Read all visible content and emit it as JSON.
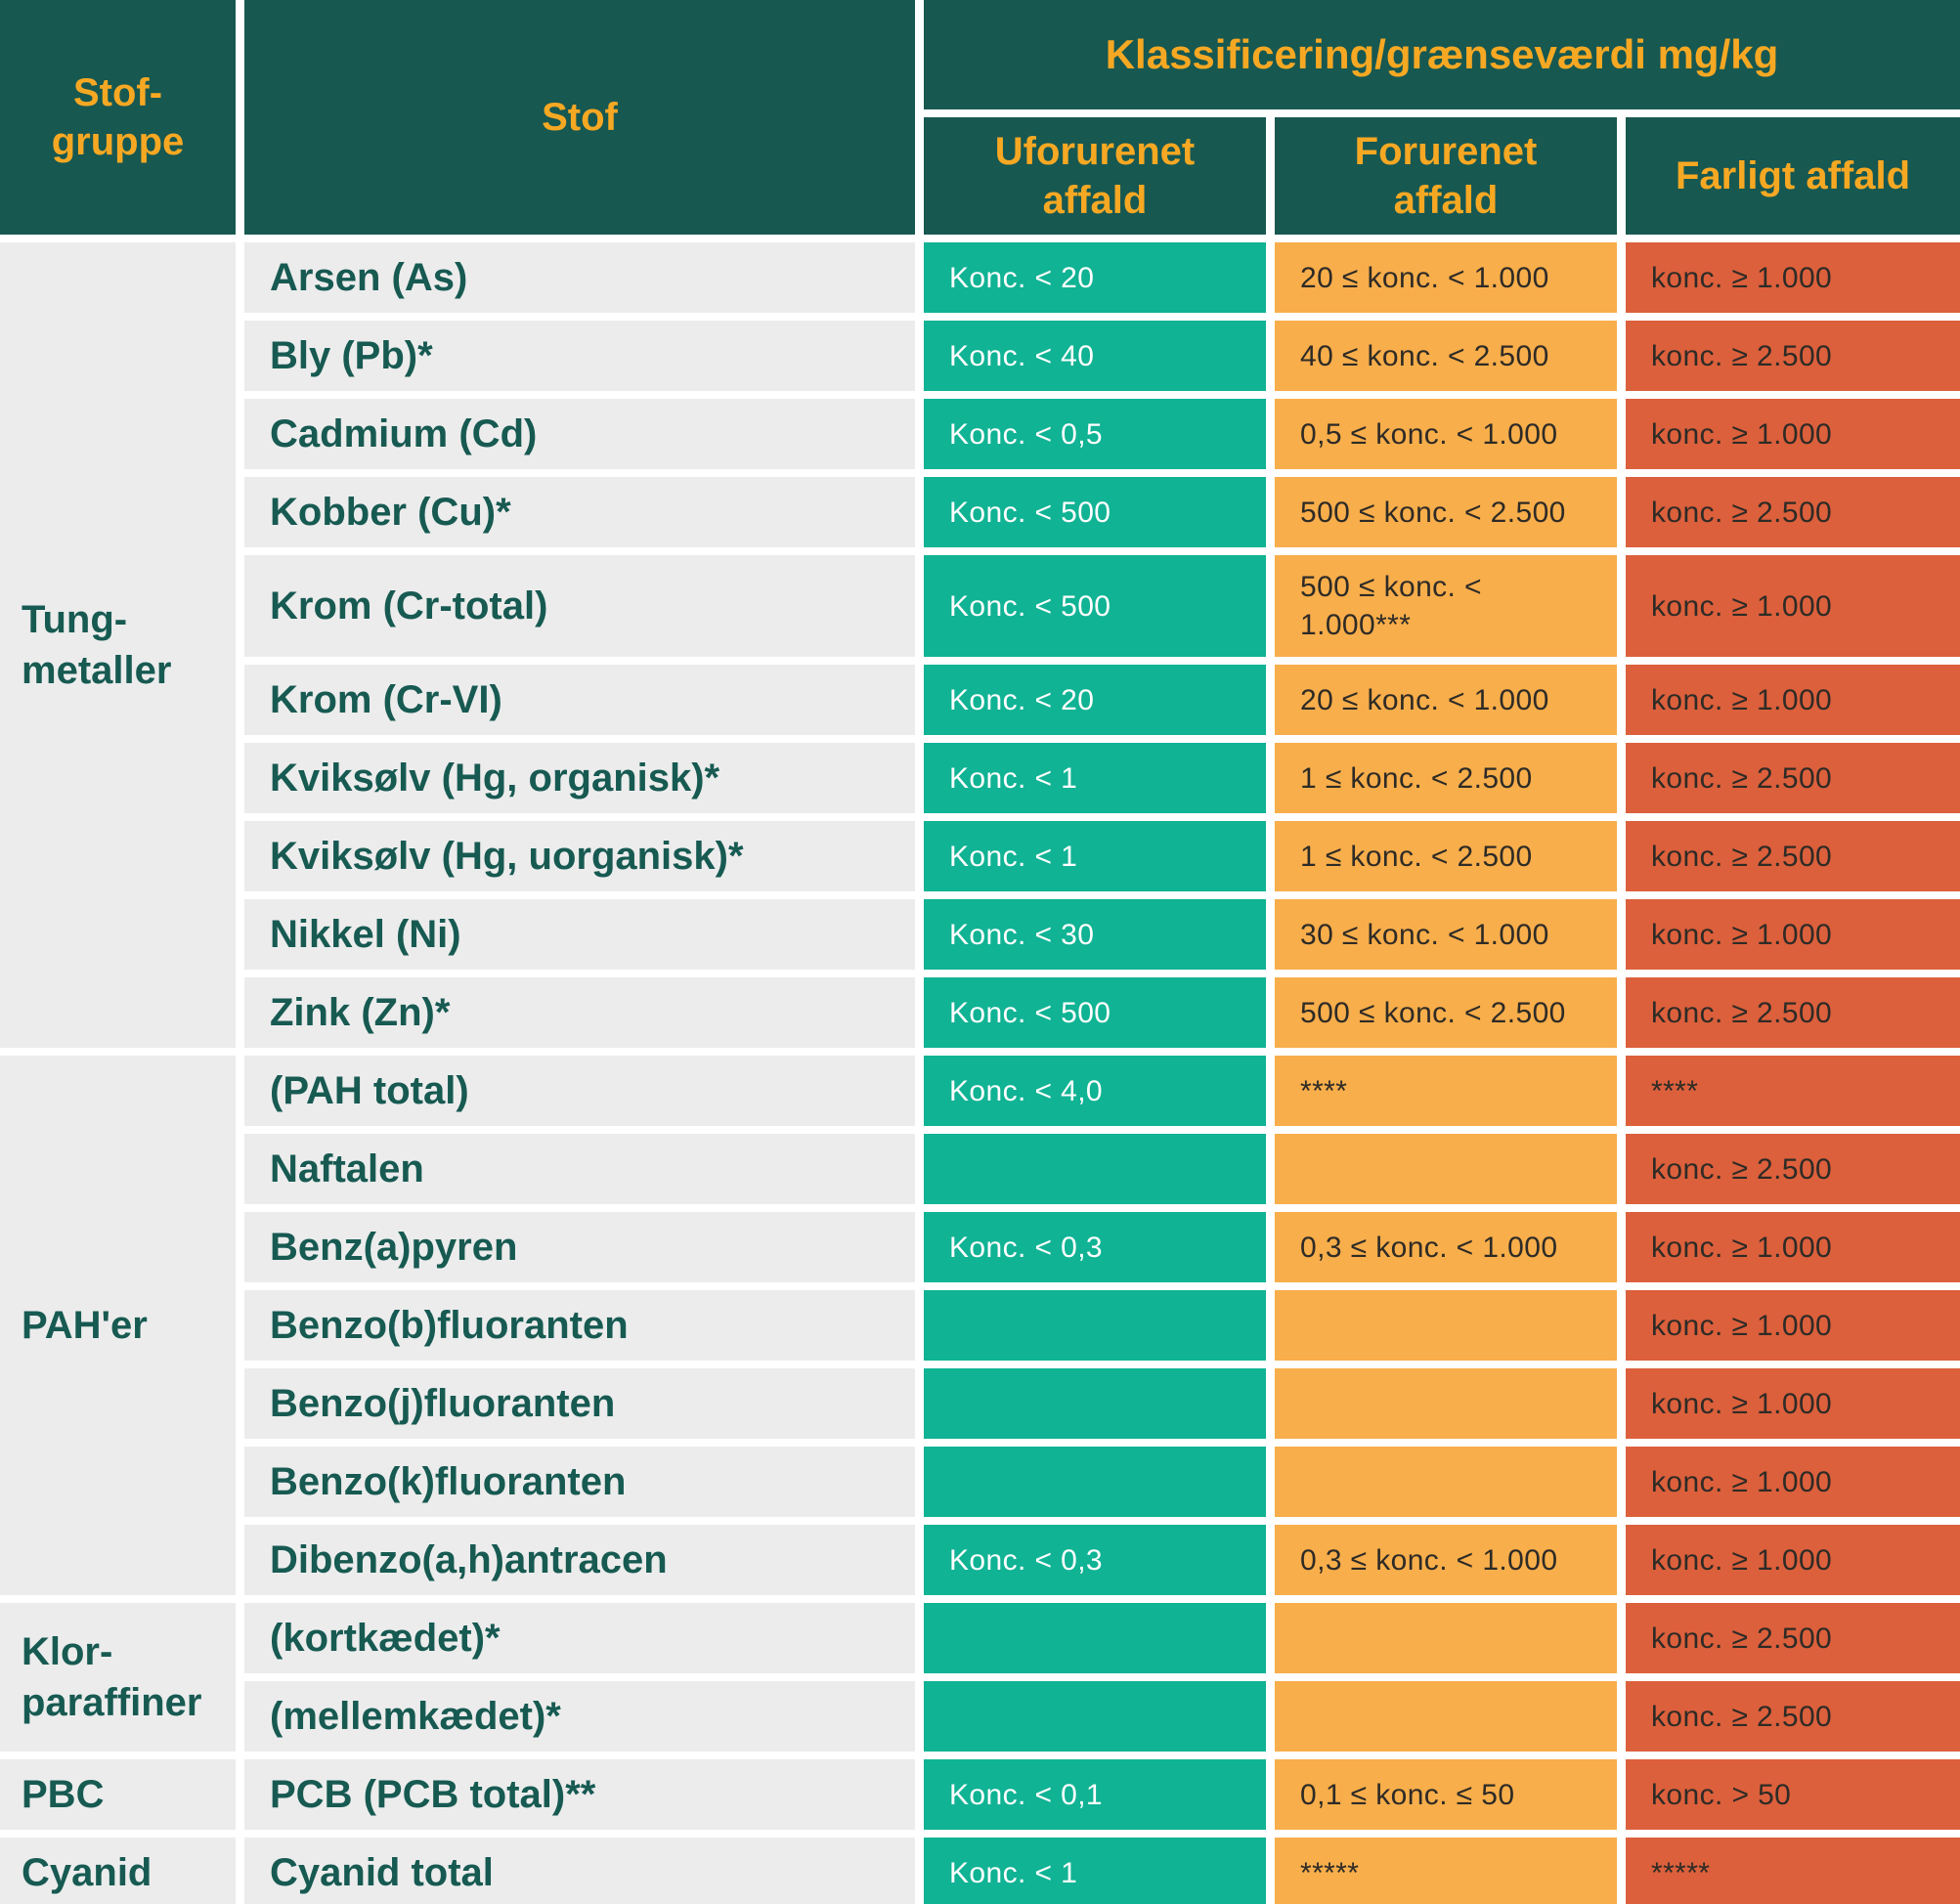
{
  "table": {
    "header": {
      "col1": "Stof-\ngruppe",
      "col2": "Stof",
      "classification": "Klassificering/grænseværdi mg/kg",
      "sub": [
        "Uforurenet\naffald",
        "Forurenet\naffald",
        "Farligt affald"
      ]
    },
    "groups": [
      {
        "label": "Tung-\nmetaller",
        "rows": 10
      },
      {
        "label": "PAH'er",
        "rows": 7
      },
      {
        "label": "Klor-\nparaffiner",
        "rows": 2
      },
      {
        "label": "PBC",
        "rows": 1
      },
      {
        "label": "Cyanid",
        "rows": 1
      }
    ],
    "rows": [
      {
        "stof": "Arsen (As)",
        "uforurenet": "Konc. < 20",
        "forurenet": "20 ≤ konc. < 1.000",
        "farligt": "konc. ≥ 1.000"
      },
      {
        "stof": "Bly (Pb)*",
        "uforurenet": "Konc. < 40",
        "forurenet": "40 ≤ konc. < 2.500",
        "farligt": "konc. ≥ 2.500"
      },
      {
        "stof": "Cadmium (Cd)",
        "uforurenet": "Konc. < 0,5",
        "forurenet": "0,5 ≤ konc. < 1.000",
        "farligt": "konc. ≥ 1.000"
      },
      {
        "stof": "Kobber (Cu)*",
        "uforurenet": "Konc. < 500",
        "forurenet": "500 ≤ konc. < 2.500",
        "farligt": "konc. ≥ 2.500"
      },
      {
        "stof": "Krom (Cr-total)",
        "uforurenet": "Konc. < 500",
        "forurenet": "500 ≤ konc. <\n1.000***",
        "farligt": "konc. ≥ 1.000"
      },
      {
        "stof": "Krom (Cr-VI)",
        "uforurenet": "Konc. < 20",
        "forurenet": "20 ≤ konc. < 1.000",
        "farligt": "konc. ≥ 1.000"
      },
      {
        "stof": "Kviksølv (Hg, organisk)*",
        "uforurenet": "Konc. < 1",
        "forurenet": "1 ≤ konc. < 2.500",
        "farligt": "konc. ≥ 2.500"
      },
      {
        "stof": "Kviksølv (Hg, uorganisk)*",
        "uforurenet": "Konc. < 1",
        "forurenet": "1 ≤ konc. < 2.500",
        "farligt": "konc. ≥ 2.500"
      },
      {
        "stof": "Nikkel (Ni)",
        "uforurenet": "Konc. < 30",
        "forurenet": "30 ≤ konc. < 1.000",
        "farligt": "konc. ≥ 1.000"
      },
      {
        "stof": "Zink (Zn)*",
        "uforurenet": "Konc. < 500",
        "forurenet": "500 ≤ konc. < 2.500",
        "farligt": "konc. ≥ 2.500"
      },
      {
        "stof": "(PAH total)",
        "uforurenet": "Konc. < 4,0",
        "forurenet": "****",
        "farligt": "****"
      },
      {
        "stof": "Naftalen",
        "uforurenet": "",
        "forurenet": "",
        "farligt": "konc. ≥ 2.500"
      },
      {
        "stof": "Benz(a)pyren",
        "uforurenet": "Konc. < 0,3",
        "forurenet": "0,3 ≤ konc. < 1.000",
        "farligt": "konc. ≥ 1.000"
      },
      {
        "stof": "Benzo(b)fluoranten",
        "uforurenet": "",
        "forurenet": "",
        "farligt": "konc. ≥ 1.000"
      },
      {
        "stof": "Benzo(j)fluoranten",
        "uforurenet": "",
        "forurenet": "",
        "farligt": "konc. ≥ 1.000"
      },
      {
        "stof": "Benzo(k)fluoranten",
        "uforurenet": "",
        "forurenet": "",
        "farligt": "konc. ≥ 1.000"
      },
      {
        "stof": "Dibenzo(a,h)antracen",
        "uforurenet": "Konc. < 0,3",
        "forurenet": "0,3 ≤ konc. < 1.000",
        "farligt": "konc. ≥ 1.000"
      },
      {
        "stof": "(kortkædet)*",
        "uforurenet": "",
        "forurenet": "",
        "farligt": "konc. ≥ 2.500"
      },
      {
        "stof": "(mellemkædet)*",
        "uforurenet": "",
        "forurenet": "",
        "farligt": "konc. ≥ 2.500"
      },
      {
        "stof": "PCB (PCB total)**",
        "uforurenet": "Konc. < 0,1",
        "forurenet": "0,1 ≤ konc. ≤ 50",
        "farligt": "konc. > 50"
      },
      {
        "stof": "Cyanid total",
        "uforurenet": "Konc. < 1",
        "forurenet": "*****",
        "farligt": "*****"
      }
    ]
  },
  "colors": {
    "header_bg": "#175851",
    "header_text": "#F7A823",
    "row_bg": "#ECECEC",
    "row_text": "#175A52",
    "uforurenet_green": "#10B394",
    "forurenet_orange": "#F8AE4B",
    "farligt_red": "#DC603C",
    "value_dark_text": "#2E2B26",
    "value_light_text": "#FFFFFF",
    "divider": "#FFFFFF"
  }
}
